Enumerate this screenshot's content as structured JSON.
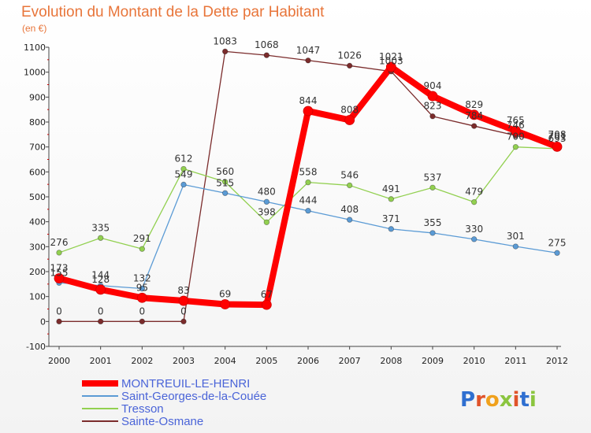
{
  "chart_data": {
    "type": "line",
    "title": "Evolution du Montant de la Dette par Habitant",
    "subtitle": "(en €)",
    "x": [
      "2000",
      "2001",
      "2002",
      "2003",
      "2004",
      "2005",
      "2006",
      "2007",
      "2008",
      "2009",
      "2010",
      "2011",
      "2012"
    ],
    "ylim": [
      -100,
      1100
    ],
    "yticks": [
      -100,
      0,
      100,
      200,
      300,
      400,
      500,
      600,
      700,
      800,
      900,
      1000,
      1100
    ],
    "grid": false,
    "legend_position": "bottom-left",
    "series": [
      {
        "name": "MONTREUIL-LE-HENRI",
        "color": "#ff0000",
        "values": [
          173,
          128,
          95,
          83,
          69,
          67,
          844,
          808,
          1021,
          904,
          829,
          765,
          701
        ]
      },
      {
        "name": "Saint-Georges-de-la-Couée",
        "color": "#5b9bd5",
        "values": [
          155,
          144,
          132,
          549,
          515,
          480,
          444,
          408,
          371,
          355,
          330,
          301,
          275
        ]
      },
      {
        "name": "Tresson",
        "color": "#92d050",
        "values": [
          276,
          335,
          291,
          612,
          560,
          398,
          558,
          546,
          491,
          537,
          479,
          700,
          693
        ]
      },
      {
        "name": "Sainte-Osmane",
        "color": "#7b2c2c",
        "values": [
          0,
          0,
          0,
          0,
          1083,
          1068,
          1047,
          1026,
          1003,
          823,
          784,
          746,
          708
        ]
      }
    ]
  },
  "logo": {
    "text": "Proxiti"
  }
}
